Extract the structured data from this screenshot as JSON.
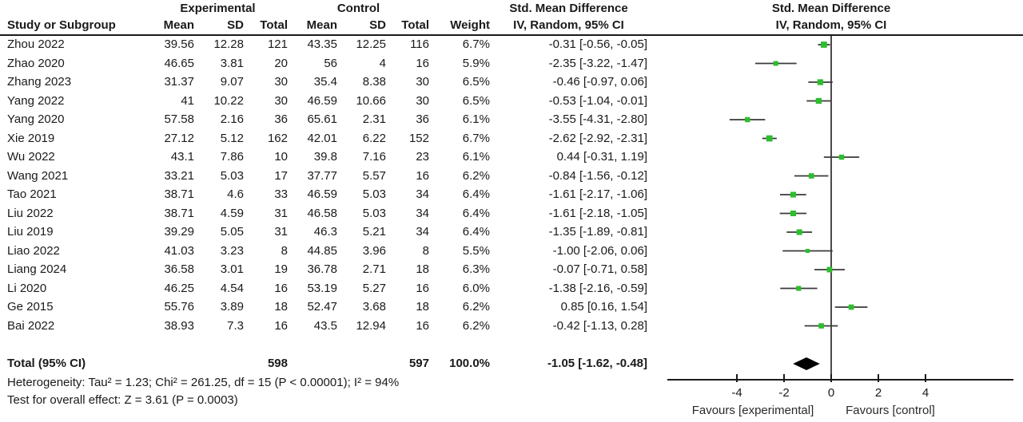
{
  "header": {
    "group_experimental": "Experimental",
    "group_control": "Control",
    "smd_title_text_col": "Std. Mean Difference",
    "smd_title_plot_col": "Std. Mean Difference",
    "col_study": "Study or Subgroup",
    "col_mean": "Mean",
    "col_sd": "SD",
    "col_total": "Total",
    "col_weight": "Weight",
    "method_text_col": "IV, Random, 95% CI",
    "method_plot_col": "IV, Random, 95% CI"
  },
  "footer": {
    "heterogeneity": "Heterogeneity: Tau² = 1.23; Chi² = 261.25, df = 15 (P < 0.00001); I² = 94%",
    "overall_effect": "Test for overall effect: Z = 3.61 (P = 0.0003)"
  },
  "chart_data": {
    "type": "forest",
    "effect_measure": "Std. Mean Difference",
    "model": "IV, Random, 95% CI",
    "axis_ticks": [
      -4,
      -2,
      0,
      2,
      4
    ],
    "xlim": [
      -6.9,
      7.7
    ],
    "xlabel_left": "Favours [experimental]",
    "xlabel_right": "Favours [control]",
    "marker_color": "#2dbd2d",
    "diamond_color": "#000000",
    "studies": [
      {
        "name": "Zhou 2022",
        "mean_e": "39.56",
        "sd_e": "12.28",
        "n_e": "121",
        "mean_c": "43.35",
        "sd_c": "12.25",
        "n_c": "116",
        "weight": "6.7%",
        "ci_text": "-0.31 [-0.56, -0.05]",
        "est": -0.31,
        "lo": -0.56,
        "hi": -0.05
      },
      {
        "name": "Zhao 2020",
        "mean_e": "46.65",
        "sd_e": "3.81",
        "n_e": "20",
        "mean_c": "56",
        "sd_c": "4",
        "n_c": "16",
        "weight": "5.9%",
        "ci_text": "-2.35 [-3.22, -1.47]",
        "est": -2.35,
        "lo": -3.22,
        "hi": -1.47
      },
      {
        "name": "Zhang 2023",
        "mean_e": "31.37",
        "sd_e": "9.07",
        "n_e": "30",
        "mean_c": "35.4",
        "sd_c": "8.38",
        "n_c": "30",
        "weight": "6.5%",
        "ci_text": "-0.46 [-0.97, 0.06]",
        "est": -0.46,
        "lo": -0.97,
        "hi": 0.06
      },
      {
        "name": "Yang 2022",
        "mean_e": "41",
        "sd_e": "10.22",
        "n_e": "30",
        "mean_c": "46.59",
        "sd_c": "10.66",
        "n_c": "30",
        "weight": "6.5%",
        "ci_text": "-0.53 [-1.04, -0.01]",
        "est": -0.53,
        "lo": -1.04,
        "hi": -0.01
      },
      {
        "name": "Yang 2020",
        "mean_e": "57.58",
        "sd_e": "2.16",
        "n_e": "36",
        "mean_c": "65.61",
        "sd_c": "2.31",
        "n_c": "36",
        "weight": "6.1%",
        "ci_text": "-3.55 [-4.31, -2.80]",
        "est": -3.55,
        "lo": -4.31,
        "hi": -2.8
      },
      {
        "name": "Xie 2019",
        "mean_e": "27.12",
        "sd_e": "5.12",
        "n_e": "162",
        "mean_c": "42.01",
        "sd_c": "6.22",
        "n_c": "152",
        "weight": "6.7%",
        "ci_text": "-2.62 [-2.92, -2.31]",
        "est": -2.62,
        "lo": -2.92,
        "hi": -2.31
      },
      {
        "name": "Wu 2022",
        "mean_e": "43.1",
        "sd_e": "7.86",
        "n_e": "10",
        "mean_c": "39.8",
        "sd_c": "7.16",
        "n_c": "23",
        "weight": "6.1%",
        "ci_text": "0.44 [-0.31, 1.19]",
        "est": 0.44,
        "lo": -0.31,
        "hi": 1.19
      },
      {
        "name": "Wang 2021",
        "mean_e": "33.21",
        "sd_e": "5.03",
        "n_e": "17",
        "mean_c": "37.77",
        "sd_c": "5.57",
        "n_c": "16",
        "weight": "6.2%",
        "ci_text": "-0.84 [-1.56, -0.12]",
        "est": -0.84,
        "lo": -1.56,
        "hi": -0.12
      },
      {
        "name": "Tao 2021",
        "mean_e": "38.71",
        "sd_e": "4.6",
        "n_e": "33",
        "mean_c": "46.59",
        "sd_c": "5.03",
        "n_c": "34",
        "weight": "6.4%",
        "ci_text": "-1.61 [-2.17, -1.06]",
        "est": -1.61,
        "lo": -2.17,
        "hi": -1.06
      },
      {
        "name": "Liu 2022",
        "mean_e": "38.71",
        "sd_e": "4.59",
        "n_e": "31",
        "mean_c": "46.58",
        "sd_c": "5.03",
        "n_c": "34",
        "weight": "6.4%",
        "ci_text": "-1.61 [-2.18, -1.05]",
        "est": -1.61,
        "lo": -2.18,
        "hi": -1.05
      },
      {
        "name": "Liu 2019",
        "mean_e": "39.29",
        "sd_e": "5.05",
        "n_e": "31",
        "mean_c": "46.3",
        "sd_c": "5.21",
        "n_c": "34",
        "weight": "6.4%",
        "ci_text": "-1.35 [-1.89, -0.81]",
        "est": -1.35,
        "lo": -1.89,
        "hi": -0.81
      },
      {
        "name": "Liao 2022",
        "mean_e": "41.03",
        "sd_e": "3.23",
        "n_e": "8",
        "mean_c": "44.85",
        "sd_c": "3.96",
        "n_c": "8",
        "weight": "5.5%",
        "ci_text": "-1.00 [-2.06, 0.06]",
        "est": -1.0,
        "lo": -2.06,
        "hi": 0.06
      },
      {
        "name": "Liang 2024",
        "mean_e": "36.58",
        "sd_e": "3.01",
        "n_e": "19",
        "mean_c": "36.78",
        "sd_c": "2.71",
        "n_c": "18",
        "weight": "6.3%",
        "ci_text": "-0.07 [-0.71, 0.58]",
        "est": -0.07,
        "lo": -0.71,
        "hi": 0.58
      },
      {
        "name": "Li 2020",
        "mean_e": "46.25",
        "sd_e": "4.54",
        "n_e": "16",
        "mean_c": "53.19",
        "sd_c": "5.27",
        "n_c": "16",
        "weight": "6.0%",
        "ci_text": "-1.38 [-2.16, -0.59]",
        "est": -1.38,
        "lo": -2.16,
        "hi": -0.59
      },
      {
        "name": "Ge 2015",
        "mean_e": "55.76",
        "sd_e": "3.89",
        "n_e": "18",
        "mean_c": "52.47",
        "sd_c": "3.68",
        "n_c": "18",
        "weight": "6.2%",
        "ci_text": "0.85 [0.16, 1.54]",
        "est": 0.85,
        "lo": 0.16,
        "hi": 1.54
      },
      {
        "name": "Bai 2022",
        "mean_e": "38.93",
        "sd_e": "7.3",
        "n_e": "16",
        "mean_c": "43.5",
        "sd_c": "12.94",
        "n_c": "16",
        "weight": "6.2%",
        "ci_text": "-0.42 [-1.13, 0.28]",
        "est": -0.42,
        "lo": -1.13,
        "hi": 0.28
      }
    ],
    "total": {
      "label": "Total (95% CI)",
      "n_e": "598",
      "n_c": "597",
      "weight": "100.0%",
      "ci_text": "-1.05 [-1.62, -0.48]",
      "est": -1.05,
      "lo": -1.62,
      "hi": -0.48
    }
  }
}
